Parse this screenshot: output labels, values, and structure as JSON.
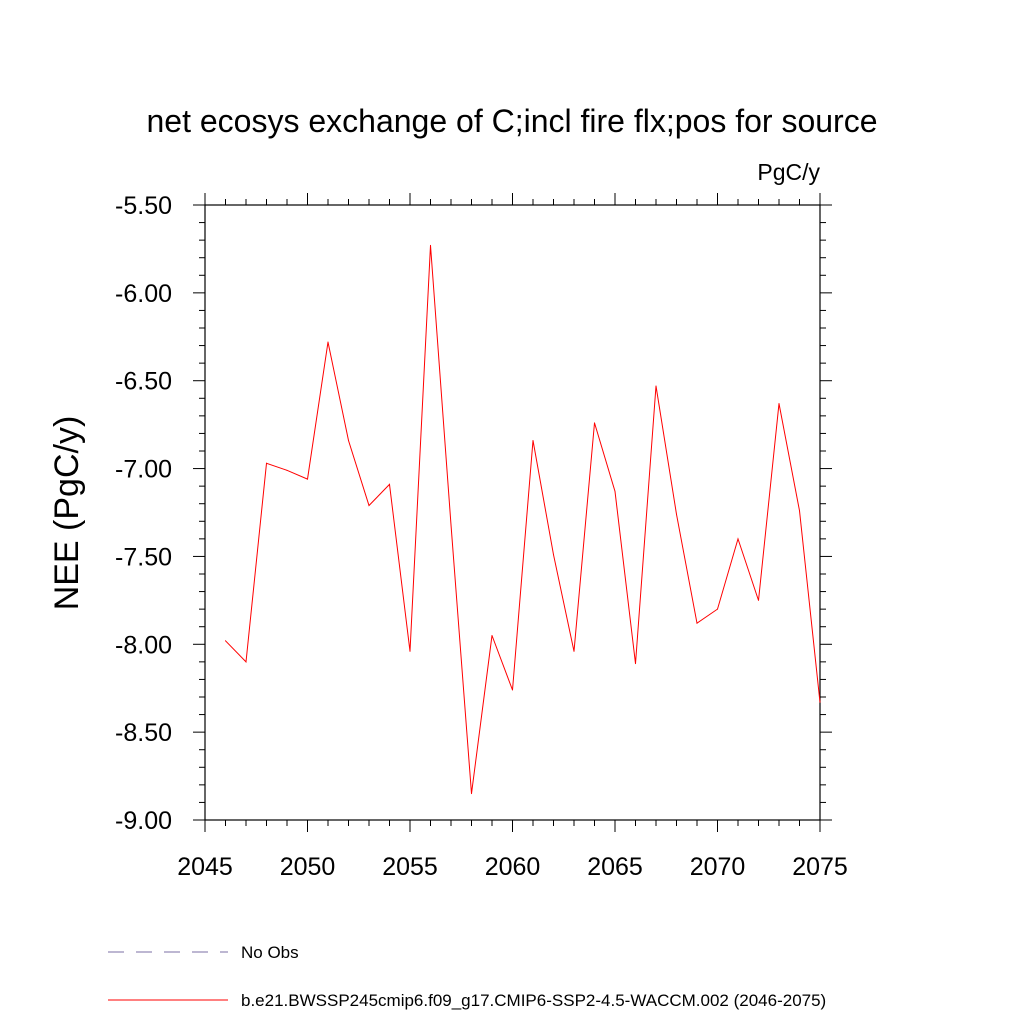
{
  "chart_data": {
    "type": "line",
    "title": "net ecosys exchange of C;incl fire flx;pos for source",
    "units_label": "PgC/y",
    "ylabel": "NEE  (PgC/y)",
    "xlabel": "",
    "xlim": [
      2045,
      2075
    ],
    "ylim": [
      -9.0,
      -5.5
    ],
    "x_ticks": [
      2045,
      2050,
      2055,
      2060,
      2065,
      2070,
      2075
    ],
    "y_ticks": [
      -5.5,
      -6.0,
      -6.5,
      -7.0,
      -7.5,
      -8.0,
      -8.5,
      -9.0
    ],
    "y_tick_labels": [
      "-5.50",
      "-6.00",
      "-6.50",
      "-7.00",
      "-7.50",
      "-8.00",
      "-8.50",
      "-9.00"
    ],
    "grid": false,
    "legend_position": "bottom",
    "series": [
      {
        "name": "b.e21.BWSSP245cmip6.f09_g17.CMIP6-SSP2-4.5-WACCM.002 (2046-2075)",
        "color": "#ff0000",
        "style": "solid",
        "x": [
          2046,
          2047,
          2048,
          2049,
          2050,
          2051,
          2052,
          2053,
          2054,
          2055,
          2056,
          2057,
          2058,
          2059,
          2060,
          2061,
          2062,
          2063,
          2064,
          2065,
          2066,
          2067,
          2068,
          2069,
          2070,
          2071,
          2072,
          2073,
          2074,
          2075
        ],
        "y": [
          -7.98,
          -8.1,
          -6.97,
          -7.01,
          -7.06,
          -6.28,
          -6.84,
          -7.21,
          -7.09,
          -8.04,
          -5.73,
          -7.32,
          -8.85,
          -7.95,
          -8.26,
          -6.84,
          -7.49,
          -8.04,
          -6.74,
          -7.13,
          -8.11,
          -6.53,
          -7.26,
          -7.88,
          -7.8,
          -7.4,
          -7.75,
          -6.63,
          -7.24,
          -8.33
        ]
      }
    ],
    "legend": [
      {
        "label": "No Obs",
        "color": "#7b6fa6",
        "style": "dashed"
      },
      {
        "label": "b.e21.BWSSP245cmip6.f09_g17.CMIP6-SSP2-4.5-WACCM.002 (2046-2075)",
        "color": "#ff0000",
        "style": "solid"
      }
    ]
  }
}
